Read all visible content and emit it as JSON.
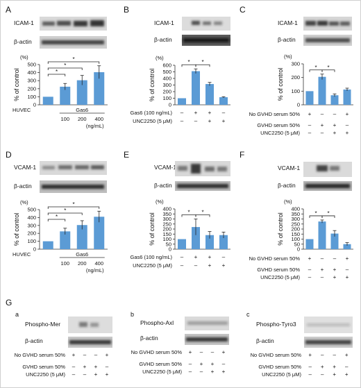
{
  "panels": {
    "A": {
      "letter": "A",
      "blot_labels": [
        "ICAM-1",
        "β-actin"
      ],
      "unit": "(%)",
      "ylabel": "% of control",
      "xrow1": [
        "HUVEC",
        "",
        "Gas6",
        ""
      ],
      "xrow2": [
        "",
        "100",
        "200",
        "400"
      ],
      "xrow3": "(ng/mL)"
    },
    "B": {
      "letter": "B",
      "blot_labels": [
        "ICAM-1",
        "β-actin"
      ],
      "unit": "(%)",
      "ylabel": "% of control",
      "treat_rows": [
        {
          "label": "Gas6 (100 ng/mL)",
          "marks": [
            "–",
            "+",
            "+",
            "–"
          ]
        },
        {
          "label": "UNC2250 (5 μM)",
          "marks": [
            "–",
            "–",
            "+",
            "+"
          ]
        }
      ]
    },
    "C": {
      "letter": "C",
      "blot_labels": [
        "ICAM-1",
        "β-actin"
      ],
      "unit": "(%)",
      "ylabel": "% of control",
      "treat_rows": [
        {
          "label": "No GVHD serum 50%",
          "marks": [
            "+",
            "–",
            "–",
            "+"
          ]
        },
        {
          "label": "GVHD serum 50%",
          "marks": [
            "–",
            "+",
            "+",
            "–"
          ]
        },
        {
          "label": "UNC2250 (5 μM)",
          "marks": [
            "–",
            "–",
            "+",
            "+"
          ]
        }
      ]
    },
    "D": {
      "letter": "D",
      "blot_labels": [
        "VCAM-1",
        "β-actin"
      ],
      "unit": "(%)",
      "ylabel": "% of control",
      "xrow1": [
        "HUVEC",
        "",
        "Gas6",
        ""
      ],
      "xrow2": [
        "",
        "100",
        "200",
        "400"
      ],
      "xrow3": "(ng/mL)"
    },
    "E": {
      "letter": "E",
      "blot_labels": [
        "VCAM-1",
        "β-actin"
      ],
      "unit": "(%)",
      "ylabel": "% of control",
      "treat_rows": [
        {
          "label": "Gas6 (100 ng/mL)",
          "marks": [
            "–",
            "+",
            "+",
            "–"
          ]
        },
        {
          "label": "UNC2250 (5 μM)",
          "marks": [
            "–",
            "–",
            "+",
            "+"
          ]
        }
      ]
    },
    "F": {
      "letter": "F",
      "blot_labels": [
        "VCAM-1",
        "β-actin"
      ],
      "unit": "(%)",
      "ylabel": "% of control",
      "treat_rows": [
        {
          "label": "No GVHD serum 50%",
          "marks": [
            "+",
            "–",
            "–",
            "+"
          ]
        },
        {
          "label": "GVHD serum 50%",
          "marks": [
            "–",
            "+",
            "+",
            "–"
          ]
        },
        {
          "label": "UNC2250 (5 μM)",
          "marks": [
            "–",
            "–",
            "+",
            "+"
          ]
        }
      ]
    },
    "G": {
      "letter": "G",
      "sub": [
        {
          "letter": "a",
          "blot_labels": [
            "Phospho-Mer",
            "β-actin"
          ]
        },
        {
          "letter": "b",
          "blot_labels": [
            "Phospho-Axl",
            "β-actin"
          ]
        },
        {
          "letter": "c",
          "blot_labels": [
            "Phospho-Tyro3",
            "β-actin"
          ]
        }
      ],
      "treat_rows": [
        {
          "label": "No GVHD serum 50%",
          "marks": [
            "+",
            "–",
            "–",
            "+"
          ]
        },
        {
          "label": "GVHD serum 50%",
          "marks": [
            "–",
            "+",
            "+",
            "–"
          ]
        },
        {
          "label": "UNC2250 (5 μM)",
          "marks": [
            "–",
            "–",
            "+",
            "+"
          ]
        }
      ]
    }
  },
  "bar_color": "#5b9bd5",
  "chart_data": [
    {
      "panel": "A",
      "type": "bar",
      "categories": [
        "HUVEC",
        "100",
        "200",
        "400"
      ],
      "values": [
        100,
        225,
        305,
        405
      ],
      "errors": [
        0,
        40,
        60,
        80
      ],
      "ylim": [
        0,
        500
      ],
      "yticks": [
        0,
        100,
        200,
        300,
        400,
        500
      ],
      "ylabel": "% of control",
      "significance": [
        [
          0,
          1
        ],
        [
          0,
          2
        ],
        [
          0,
          3
        ]
      ],
      "sig_label": "*"
    },
    {
      "panel": "B",
      "type": "bar",
      "categories": [
        "1",
        "2",
        "3",
        "4"
      ],
      "values": [
        100,
        510,
        315,
        115
      ],
      "errors": [
        0,
        35,
        25,
        8
      ],
      "ylim": [
        0,
        600
      ],
      "yticks": [
        0,
        100,
        200,
        300,
        400,
        500,
        600
      ],
      "ylabel": "% of control",
      "significance": [
        [
          0,
          1
        ],
        [
          1,
          2
        ]
      ],
      "sig_label": "*"
    },
    {
      "panel": "C",
      "type": "bar",
      "categories": [
        "1",
        "2",
        "3",
        "4"
      ],
      "values": [
        100,
        205,
        70,
        112
      ],
      "errors": [
        0,
        20,
        10,
        10
      ],
      "ylim": [
        0,
        300
      ],
      "yticks": [
        0,
        100,
        200,
        300
      ],
      "ylabel": "% of control",
      "significance": [
        [
          0,
          1
        ],
        [
          1,
          2
        ]
      ],
      "sig_label": "*"
    },
    {
      "panel": "D",
      "type": "bar",
      "categories": [
        "HUVEC",
        "100",
        "200",
        "400"
      ],
      "values": [
        100,
        225,
        305,
        410
      ],
      "errors": [
        0,
        40,
        55,
        70
      ],
      "ylim": [
        0,
        500
      ],
      "yticks": [
        0,
        100,
        200,
        300,
        400,
        500
      ],
      "ylabel": "% of control",
      "significance": [
        [
          0,
          1
        ],
        [
          0,
          2
        ],
        [
          0,
          3
        ]
      ],
      "sig_label": "*"
    },
    {
      "panel": "E",
      "type": "bar",
      "categories": [
        "1",
        "2",
        "3",
        "4"
      ],
      "values": [
        100,
        220,
        140,
        140
      ],
      "errors": [
        0,
        80,
        35,
        30
      ],
      "ylim": [
        0,
        400
      ],
      "yticks": [
        0,
        50,
        100,
        150,
        200,
        250,
        300,
        350,
        400
      ],
      "ylabel": "% of control",
      "significance": [
        [
          0,
          1
        ],
        [
          1,
          2
        ]
      ],
      "sig_label": "*"
    },
    {
      "panel": "F",
      "type": "bar",
      "categories": [
        "1",
        "2",
        "3",
        "4"
      ],
      "values": [
        100,
        275,
        155,
        50
      ],
      "errors": [
        0,
        15,
        30,
        15
      ],
      "ylim": [
        0,
        400
      ],
      "yticks": [
        0,
        50,
        100,
        150,
        200,
        250,
        300,
        350,
        400
      ],
      "ylabel": "% of control",
      "significance": [
        [
          0,
          1
        ],
        [
          1,
          2
        ]
      ],
      "sig_label": "*"
    }
  ]
}
